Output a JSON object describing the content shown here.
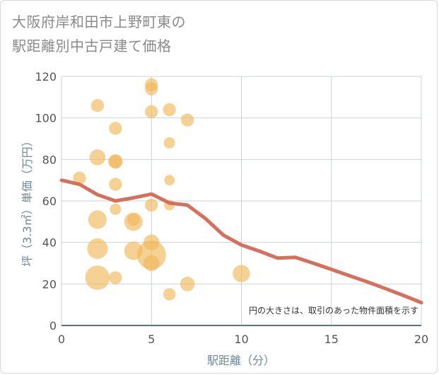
{
  "title_line1": "大阪府岸和田市上野町東の",
  "title_line2": "駅距離別中古戸建て価格",
  "chart_data": {
    "type": "scatter",
    "title": "大阪府岸和田市上野町東の駅距離別中古戸建て価格",
    "xlabel": "駅距離（分）",
    "ylabel": "坪（3.3㎡）単価（万円）",
    "xlim": [
      0,
      20
    ],
    "ylim": [
      0,
      120
    ],
    "x_ticks": [
      0,
      5,
      10,
      15,
      20
    ],
    "y_ticks": [
      0,
      20,
      40,
      60,
      80,
      100,
      120
    ],
    "grid": true,
    "note": "円の大きさは、取引のあった物件面積を示す",
    "colors": {
      "bubble": "#f0b85a",
      "trend": "#d4705c",
      "grid": "#c9d3dc",
      "axis": "#5a7384"
    },
    "bubbles": [
      {
        "x": 1,
        "y": 71,
        "size": 2
      },
      {
        "x": 2,
        "y": 106,
        "size": 2
      },
      {
        "x": 2,
        "y": 81,
        "size": 3
      },
      {
        "x": 2,
        "y": 51,
        "size": 4
      },
      {
        "x": 2,
        "y": 37,
        "size": 5
      },
      {
        "x": 2,
        "y": 23,
        "size": 7
      },
      {
        "x": 3,
        "y": 95,
        "size": 2
      },
      {
        "x": 3,
        "y": 79,
        "size": 2.5
      },
      {
        "x": 3,
        "y": 79,
        "size": 2
      },
      {
        "x": 3,
        "y": 68,
        "size": 2
      },
      {
        "x": 3,
        "y": 56,
        "size": 1.5
      },
      {
        "x": 3,
        "y": 23,
        "size": 2
      },
      {
        "x": 4,
        "y": 50,
        "size": 4
      },
      {
        "x": 4,
        "y": 51,
        "size": 1.8
      },
      {
        "x": 4,
        "y": 36,
        "size": 4
      },
      {
        "x": 5,
        "y": 116,
        "size": 2
      },
      {
        "x": 5,
        "y": 114,
        "size": 2
      },
      {
        "x": 5,
        "y": 103,
        "size": 2
      },
      {
        "x": 5,
        "y": 58,
        "size": 2
      },
      {
        "x": 5,
        "y": 40,
        "size": 3
      },
      {
        "x": 5,
        "y": 34,
        "size": 10
      },
      {
        "x": 5,
        "y": 30,
        "size": 3
      },
      {
        "x": 6,
        "y": 104,
        "size": 2
      },
      {
        "x": 6,
        "y": 88,
        "size": 1.5
      },
      {
        "x": 6,
        "y": 70,
        "size": 1.3
      },
      {
        "x": 6,
        "y": 58,
        "size": 1.3
      },
      {
        "x": 6,
        "y": 15,
        "size": 1.8
      },
      {
        "x": 7,
        "y": 99,
        "size": 2
      },
      {
        "x": 7,
        "y": 20,
        "size": 2.5
      },
      {
        "x": 10,
        "y": 25,
        "size": 3.5
      }
    ],
    "trend": {
      "x": [
        0,
        1,
        2,
        3,
        4,
        5,
        6,
        7,
        8,
        9,
        10,
        11,
        12,
        13,
        14,
        15,
        16,
        17,
        18,
        19,
        20
      ],
      "y": [
        70,
        68,
        63,
        60,
        61.5,
        63.3,
        59,
        58,
        51.5,
        43.5,
        38.8,
        35.8,
        32.5,
        32.8,
        30,
        27,
        24,
        21,
        17.8,
        14.5,
        11
      ]
    }
  }
}
